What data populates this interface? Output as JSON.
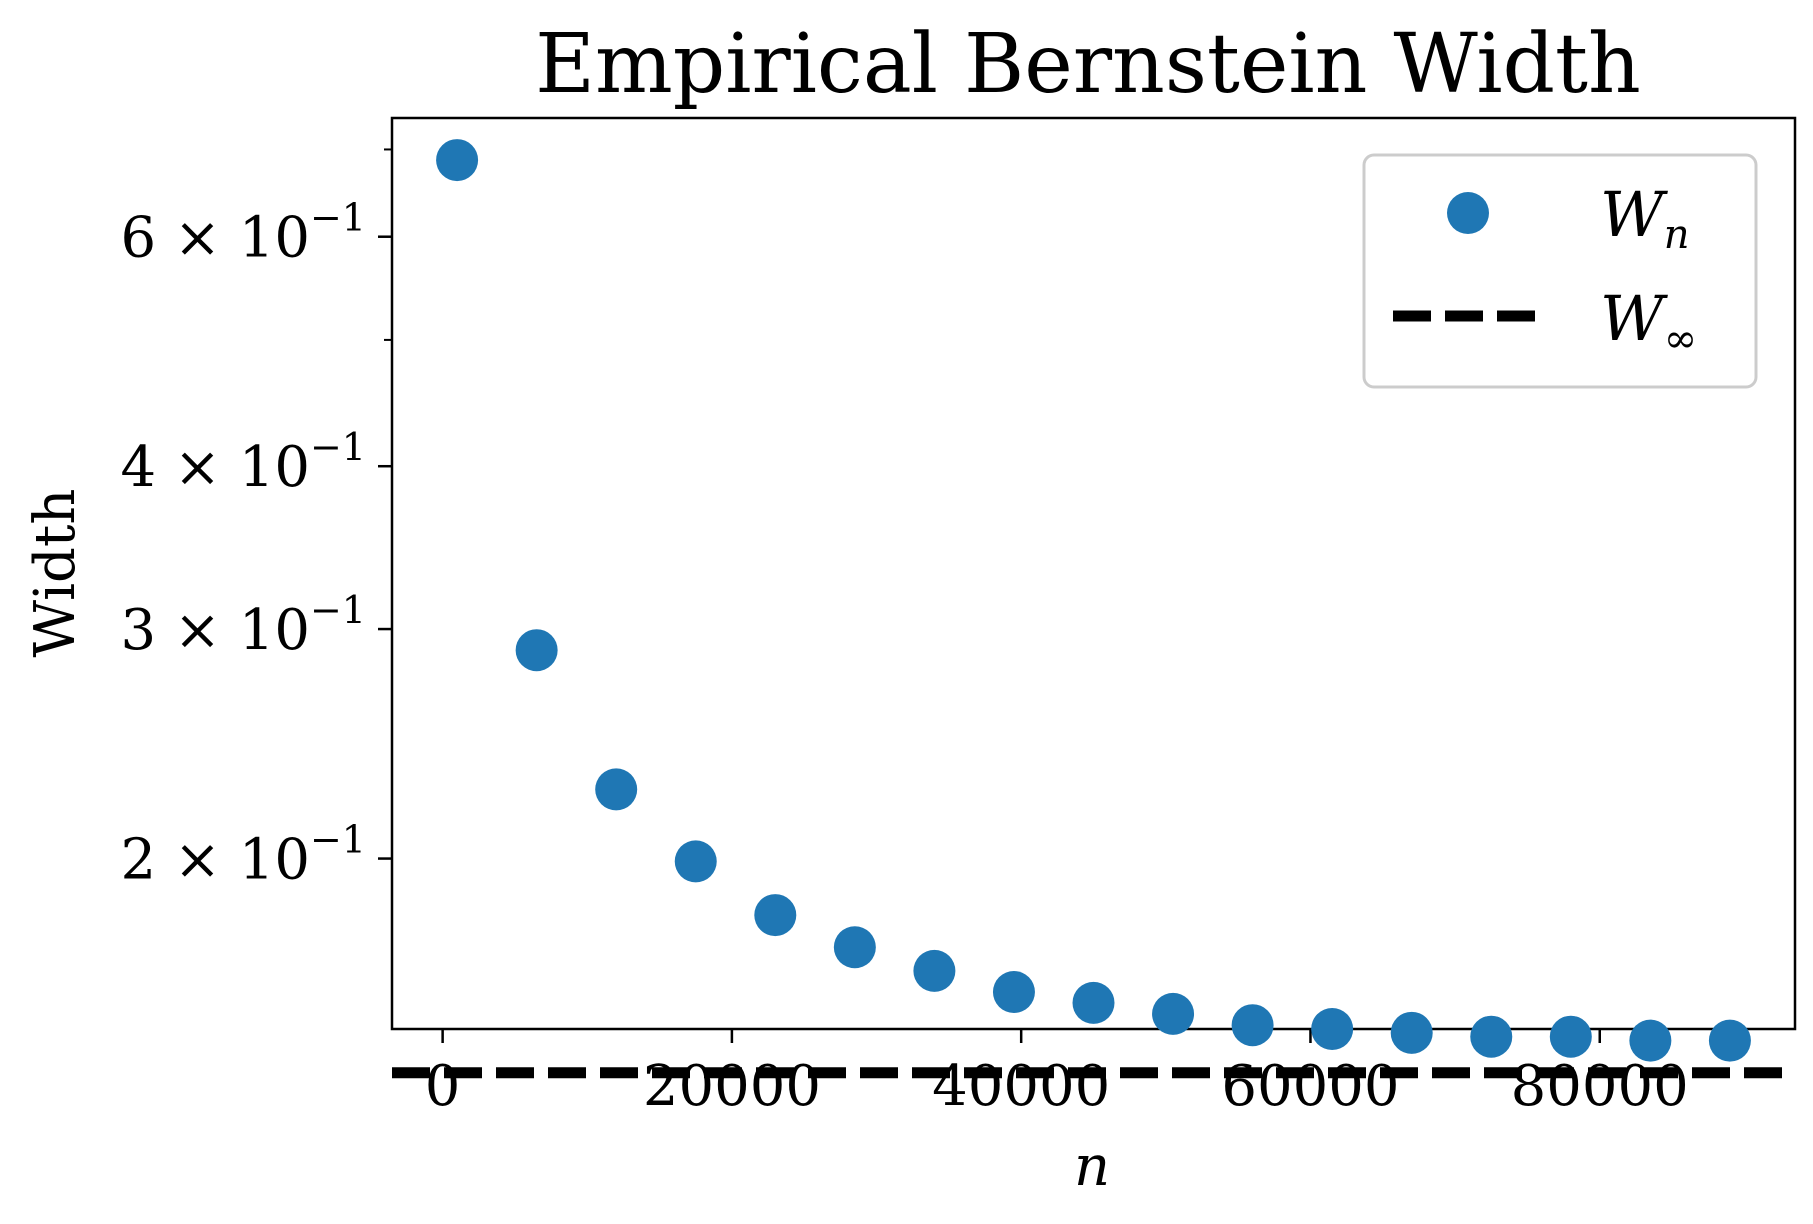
{
  "chart_data": {
    "type": "scatter",
    "title": "Empirical Bernstein Width",
    "xlabel": "n",
    "ylabel": "Width",
    "xlim": [
      -3500,
      93500
    ],
    "ylim": [
      0.148,
      0.74
    ],
    "yscale": "log",
    "grid": false,
    "legend_position": "top-right",
    "x_ticks": [
      {
        "value": 0,
        "label": "0"
      },
      {
        "value": 20000,
        "label": "20000"
      },
      {
        "value": 40000,
        "label": "40000"
      },
      {
        "value": 60000,
        "label": "60000"
      },
      {
        "value": 80000,
        "label": "80000"
      }
    ],
    "y_ticks": [
      {
        "value": 0.2,
        "mantissa": "2",
        "base": "10",
        "exponent": "−1"
      },
      {
        "value": 0.3,
        "mantissa": "3",
        "base": "10",
        "exponent": "−1"
      },
      {
        "value": 0.4,
        "mantissa": "4",
        "base": "10",
        "exponent": "−1"
      },
      {
        "value": 0.6,
        "mantissa": "6",
        "base": "10",
        "exponent": "−1"
      }
    ],
    "y_minor_ticks": [
      0.5,
      0.7
    ],
    "series": [
      {
        "name": "W",
        "name_sub": "n",
        "kind": "scatter",
        "color": "#1f77b4",
        "x": [
          1000,
          6500,
          12000,
          17500,
          23000,
          28500,
          34000,
          39500,
          45000,
          50500,
          56000,
          61500,
          67000,
          72500,
          78000,
          83500,
          89000
        ],
        "y": [
          0.687,
          0.289,
          0.226,
          0.199,
          0.181,
          0.171,
          0.164,
          0.158,
          0.155,
          0.152,
          0.149,
          0.148,
          0.147,
          0.146,
          0.146,
          0.145,
          0.145
        ]
      },
      {
        "name": "W",
        "name_sub": "∞",
        "kind": "hline",
        "color": "#000000",
        "style": "dashed",
        "y": 0.137
      }
    ]
  }
}
